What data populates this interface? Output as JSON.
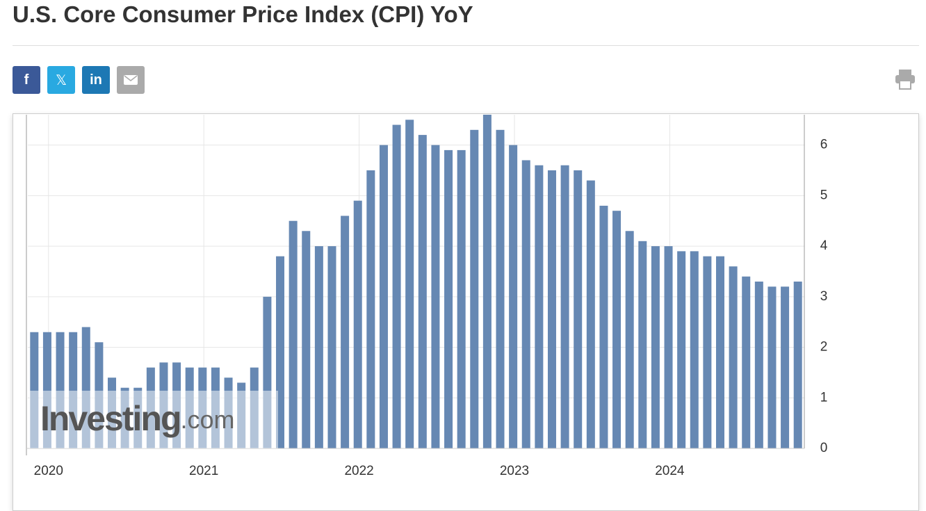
{
  "header": {
    "title": "U.S. Core Consumer Price Index (CPI) YoY",
    "share": [
      "f",
      "𝕏",
      "in"
    ]
  },
  "watermark": {
    "brand": "Investing",
    "suffix": ".com"
  },
  "chart_data": {
    "type": "bar",
    "color": "#6688b3",
    "categories": [
      null,
      null,
      "2020",
      null,
      null,
      null,
      null,
      null,
      null,
      null,
      null,
      null,
      null,
      null,
      "2021",
      null,
      null,
      null,
      null,
      null,
      null,
      null,
      null,
      null,
      null,
      null,
      "2022",
      null,
      null,
      null,
      null,
      null,
      null,
      null,
      null,
      null,
      null,
      null,
      "2023",
      null,
      null,
      null,
      null,
      null,
      null,
      null,
      null,
      null,
      null,
      null,
      "2024",
      null,
      null,
      null,
      null,
      null,
      null,
      null,
      null,
      null
    ],
    "values": [
      2.3,
      2.3,
      2.3,
      2.3,
      2.4,
      2.1,
      1.4,
      1.2,
      1.2,
      1.6,
      1.7,
      1.7,
      1.6,
      1.6,
      1.6,
      1.4,
      1.3,
      1.6,
      3.0,
      3.8,
      4.5,
      4.3,
      4.0,
      4.0,
      4.6,
      4.9,
      5.5,
      6.0,
      6.4,
      6.5,
      6.2,
      6.0,
      5.9,
      5.9,
      6.3,
      6.6,
      6.3,
      6.0,
      5.7,
      5.6,
      5.5,
      5.6,
      5.5,
      5.3,
      4.8,
      4.7,
      4.3,
      4.1,
      4.0,
      4.0,
      3.9,
      3.9,
      3.8,
      3.8,
      3.6,
      3.4,
      3.3,
      3.2,
      3.2,
      3.3
    ],
    "ylim": [
      0,
      6.6
    ],
    "yticks": [
      0,
      1,
      2,
      3,
      4,
      5,
      6
    ],
    "grid": true
  }
}
